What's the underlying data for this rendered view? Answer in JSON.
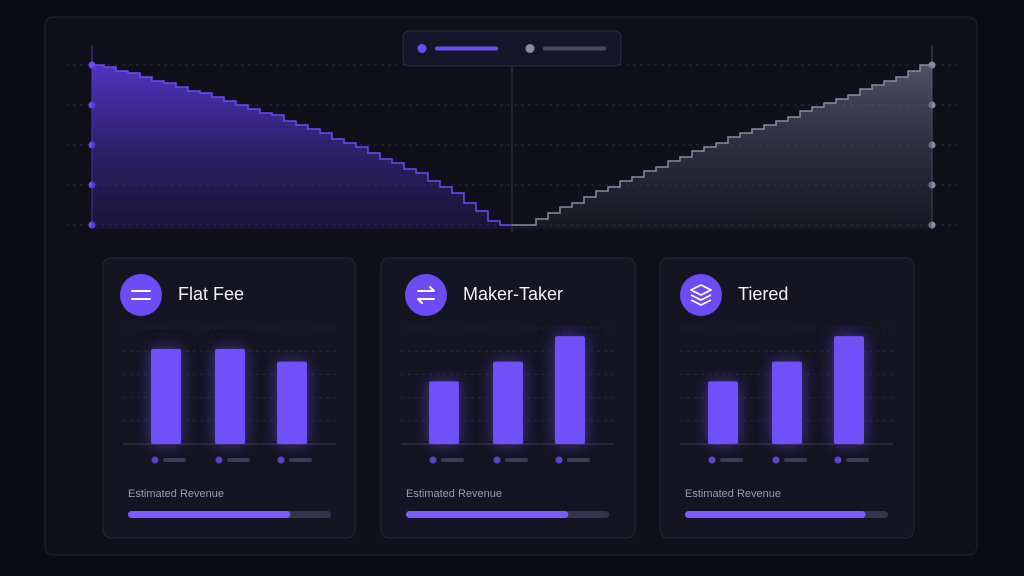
{
  "depth_chart": {
    "type": "step-area",
    "ylim": [
      0,
      4
    ],
    "yticks": [
      0,
      1,
      2,
      3,
      4
    ],
    "series": [
      {
        "color": "#6d4cf5",
        "values": [
          4.0,
          3.95,
          3.85,
          3.8,
          3.7,
          3.6,
          3.55,
          3.45,
          3.35,
          3.3,
          3.2,
          3.1,
          3.0,
          2.9,
          2.8,
          2.75,
          2.6,
          2.5,
          2.4,
          2.3,
          2.15,
          2.05,
          1.95,
          1.8,
          1.65,
          1.55,
          1.4,
          1.3,
          1.1,
          0.95,
          0.8,
          0.55,
          0.35,
          0.1,
          0
        ]
      },
      {
        "color": "#8b8ba3",
        "values": [
          0,
          0,
          0.15,
          0.3,
          0.45,
          0.55,
          0.7,
          0.85,
          0.95,
          1.1,
          1.2,
          1.35,
          1.45,
          1.6,
          1.7,
          1.85,
          1.95,
          2.05,
          2.2,
          2.3,
          2.4,
          2.5,
          2.6,
          2.7,
          2.85,
          2.95,
          3.05,
          3.15,
          3.25,
          3.4,
          3.5,
          3.6,
          3.7,
          3.85,
          4.0
        ]
      }
    ]
  },
  "cards": [
    {
      "title": "Flat Fee",
      "chart": {
        "type": "bar",
        "ylim": [
          0,
          5
        ],
        "yticks": [
          0,
          1,
          2,
          3,
          4,
          5
        ],
        "values": [
          4.1,
          4.1,
          3.55
        ],
        "color": "#7050f7"
      },
      "revenue_label": "Estimated Revenue",
      "revenue": {
        "value": 80,
        "xlim": [
          0,
          100
        ],
        "color": "#7b5cff"
      }
    },
    {
      "title": "Maker-Taker",
      "chart": {
        "type": "bar",
        "ylim": [
          0,
          5
        ],
        "yticks": [
          0,
          1,
          2,
          3,
          4,
          5
        ],
        "values": [
          2.7,
          3.55,
          4.65
        ],
        "color": "#7050f7"
      },
      "revenue_label": "Estimated Revenue",
      "revenue": {
        "value": 80,
        "xlim": [
          0,
          100
        ],
        "color": "#7b5cff"
      }
    },
    {
      "title": "Tiered",
      "chart": {
        "type": "bar",
        "ylim": [
          0,
          5
        ],
        "yticks": [
          0,
          1,
          2,
          3,
          4,
          5
        ],
        "values": [
          2.7,
          3.55,
          4.65
        ],
        "color": "#7050f7"
      },
      "revenue_label": "Estimated Revenue",
      "revenue": {
        "value": 89,
        "xlim": [
          0,
          100
        ],
        "color": "#7b5cff"
      }
    }
  ]
}
